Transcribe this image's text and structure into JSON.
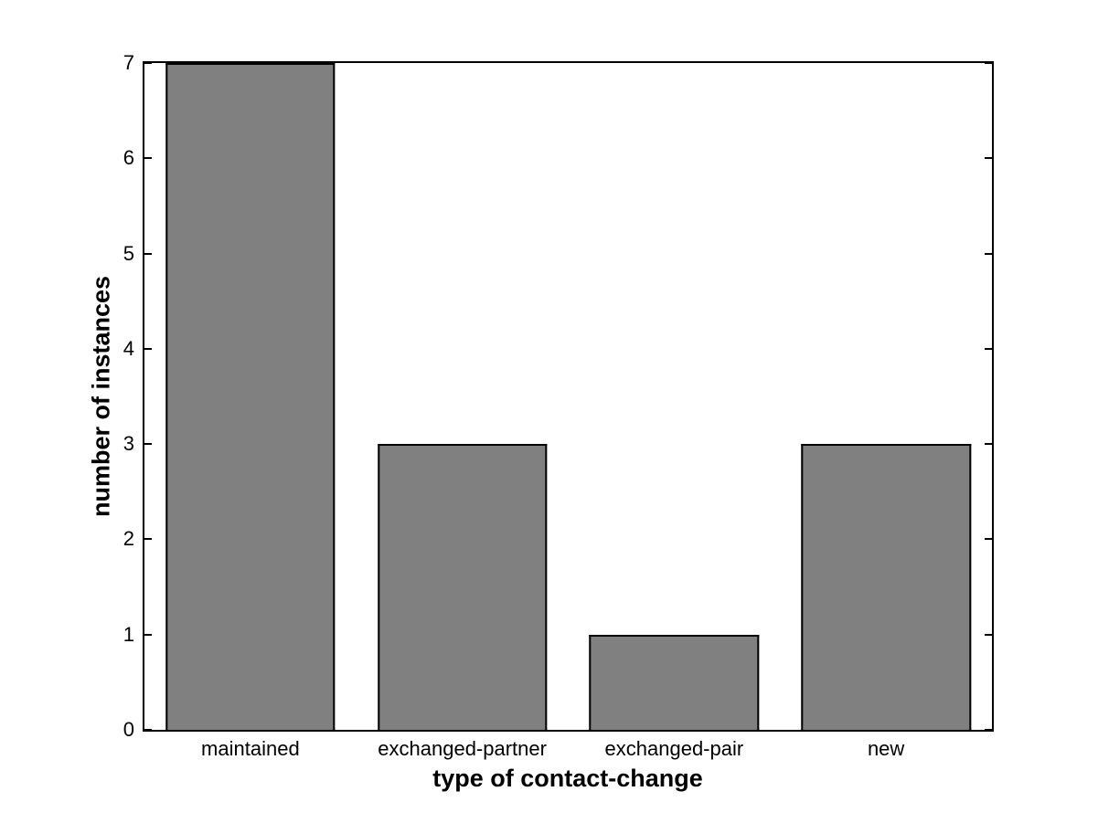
{
  "figure": {
    "background_color": "#ffffff",
    "axis_color": "#000000",
    "bar_fill_color": "#808080",
    "bar_edge_color": "#000000",
    "text_color": "#000000"
  },
  "chart_data": {
    "type": "bar",
    "title": "",
    "xlabel": "type of contact-change",
    "ylabel": "number of instances",
    "categories": [
      "maintained",
      "exchanged-partner",
      "exchanged-pair",
      "new"
    ],
    "values": [
      7,
      3,
      1,
      3
    ],
    "ylim": [
      0,
      7
    ],
    "yticks": [
      0,
      1,
      2,
      3,
      4,
      5,
      6,
      7
    ],
    "bar_width_fraction": 0.8,
    "grid": false,
    "legend": "none",
    "box": true,
    "tick_direction": "in"
  }
}
